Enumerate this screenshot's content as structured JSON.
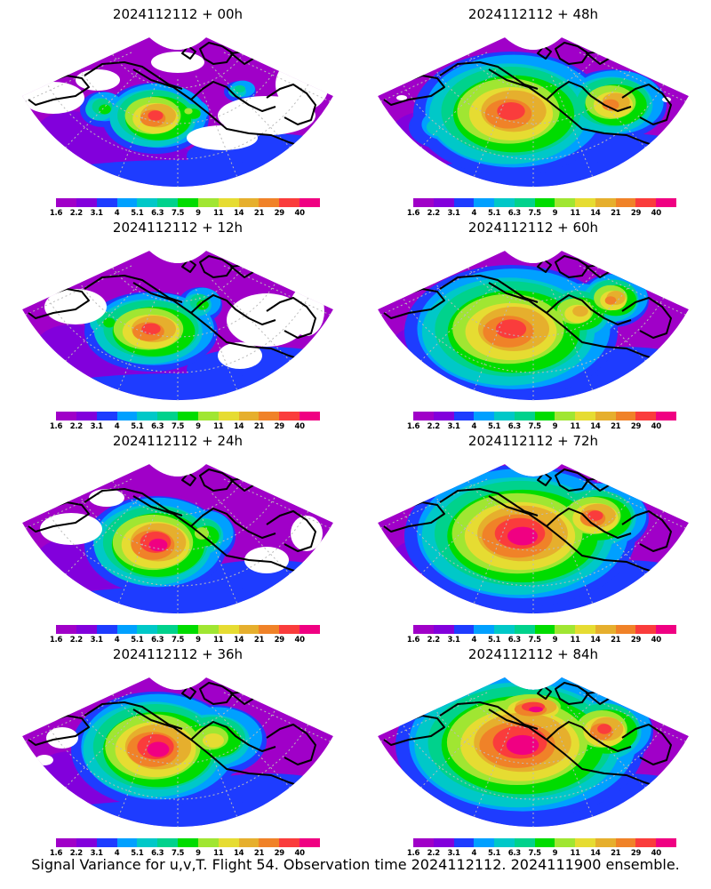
{
  "panels": [
    {
      "title": "2024112112 + 00h"
    },
    {
      "title": "2024112112 + 48h"
    },
    {
      "title": "2024112112 + 12h"
    },
    {
      "title": "2024112112 + 60h"
    },
    {
      "title": "2024112112 + 24h"
    },
    {
      "title": "2024112112 + 72h"
    },
    {
      "title": "2024112112 + 36h"
    },
    {
      "title": "2024112112 + 84h"
    }
  ],
  "colorbar": {
    "labels": [
      "1.6",
      "2.2",
      "3.1",
      "4",
      "5.1",
      "6.3",
      "7.5",
      "9",
      "11",
      "14",
      "21",
      "29",
      "40"
    ],
    "colors": [
      "#a000c8",
      "#8200dc",
      "#1e3cff",
      "#00a0ff",
      "#00c8c8",
      "#00d28c",
      "#00dc00",
      "#a0e632",
      "#e6dc32",
      "#e6af2d",
      "#f08228",
      "#fa3c3c",
      "#f00082"
    ]
  },
  "caption": "Signal Variance for u,v,T. Flight 54. Observation time 2024112112. 2024111900 ensemble."
}
